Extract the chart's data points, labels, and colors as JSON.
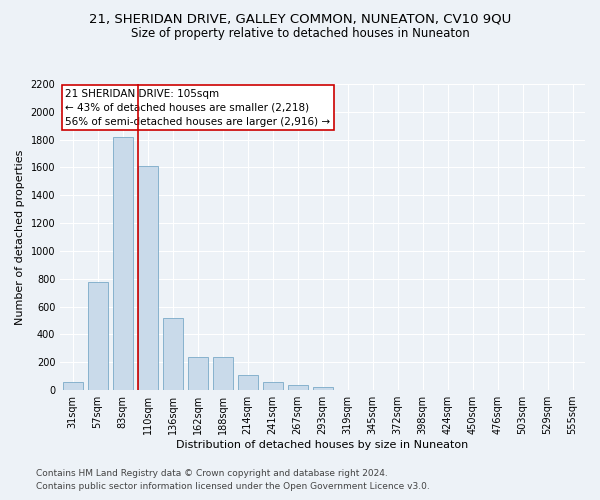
{
  "title_line1": "21, SHERIDAN DRIVE, GALLEY COMMON, NUNEATON, CV10 9QU",
  "title_line2": "Size of property relative to detached houses in Nuneaton",
  "xlabel": "Distribution of detached houses by size in Nuneaton",
  "ylabel": "Number of detached properties",
  "categories": [
    "31sqm",
    "57sqm",
    "83sqm",
    "110sqm",
    "136sqm",
    "162sqm",
    "188sqm",
    "214sqm",
    "241sqm",
    "267sqm",
    "293sqm",
    "319sqm",
    "345sqm",
    "372sqm",
    "398sqm",
    "424sqm",
    "450sqm",
    "476sqm",
    "503sqm",
    "529sqm",
    "555sqm"
  ],
  "values": [
    55,
    780,
    1820,
    1610,
    520,
    240,
    240,
    105,
    55,
    40,
    22,
    0,
    0,
    0,
    0,
    0,
    0,
    0,
    0,
    0,
    0
  ],
  "bar_color": "#c9daea",
  "bar_edge_color": "#7aaac8",
  "vline_color": "#cc0000",
  "annotation_line1": "21 SHERIDAN DRIVE: 105sqm",
  "annotation_line2": "← 43% of detached houses are smaller (2,218)",
  "annotation_line3": "56% of semi-detached houses are larger (2,916) →",
  "annotation_box_facecolor": "#ffffff",
  "annotation_box_edgecolor": "#cc0000",
  "ylim": [
    0,
    2200
  ],
  "yticks": [
    0,
    200,
    400,
    600,
    800,
    1000,
    1200,
    1400,
    1600,
    1800,
    2000,
    2200
  ],
  "footer_line1": "Contains HM Land Registry data © Crown copyright and database right 2024.",
  "footer_line2": "Contains public sector information licensed under the Open Government Licence v3.0.",
  "background_color": "#edf2f7",
  "plot_bg_color": "#edf2f7",
  "grid_color": "#ffffff",
  "title1_fontsize": 9.5,
  "title2_fontsize": 8.5,
  "axis_label_fontsize": 8,
  "ylabel_fontsize": 8,
  "tick_fontsize": 7,
  "annotation_fontsize": 7.5,
  "footer_fontsize": 6.5
}
